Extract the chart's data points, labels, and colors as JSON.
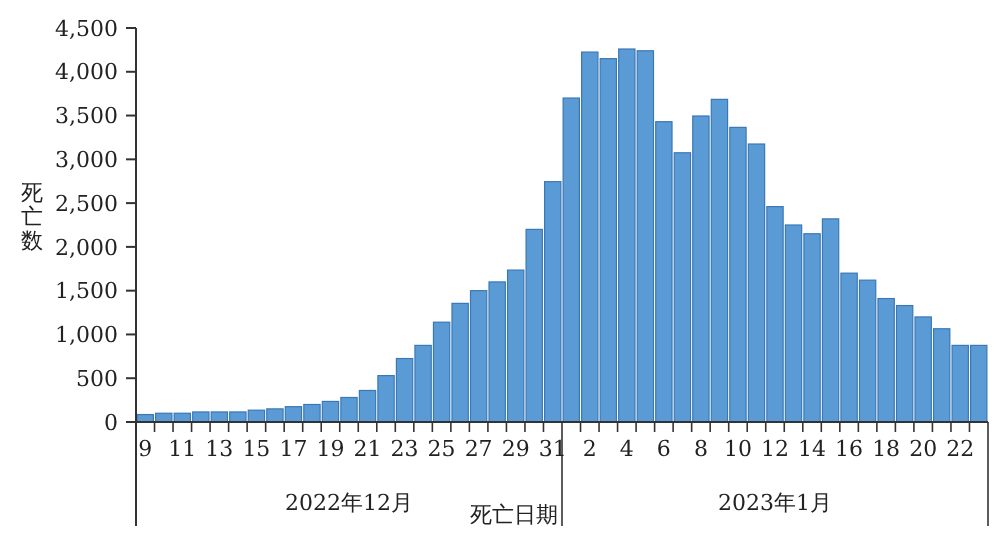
{
  "chart_data": {
    "type": "bar",
    "xlabel": "死亡日期",
    "ylabel": "死亡数",
    "categories": [
      "9",
      null,
      "11",
      null,
      "13",
      null,
      "15",
      null,
      "17",
      null,
      "19",
      null,
      "21",
      null,
      "23",
      null,
      "25",
      null,
      "27",
      null,
      "29",
      null,
      "31",
      null,
      "2",
      null,
      "4",
      null,
      "6",
      null,
      "8",
      null,
      "10",
      null,
      "12",
      null,
      "14",
      null,
      "16",
      null,
      "18",
      null,
      "20",
      null,
      "22",
      null
    ],
    "values": [
      85,
      100,
      100,
      115,
      115,
      115,
      135,
      150,
      175,
      200,
      235,
      280,
      360,
      530,
      725,
      875,
      1140,
      1355,
      1500,
      1600,
      1735,
      2200,
      2745,
      3700,
      4225,
      4150,
      4260,
      4240,
      3430,
      3075,
      3495,
      3685,
      3365,
      3175,
      2460,
      2250,
      2150,
      2320,
      1700,
      1620,
      1410,
      1330,
      1200,
      1065,
      875,
      875
    ],
    "color": "#5b9bd5",
    "ylim": [
      0,
      4500
    ],
    "yticks": [
      0,
      {
        "value": 500,
        "label": "500"
      },
      {
        "value": 1000,
        "label": "1,000"
      },
      {
        "value": 1500,
        "label": "1,500"
      },
      {
        "value": 2000,
        "label": "2,000"
      },
      {
        "value": 2500,
        "label": "2,500"
      },
      {
        "value": 3000,
        "label": "3,000"
      },
      {
        "value": 3500,
        "label": "3,500"
      },
      {
        "value": 4000,
        "label": "4,000"
      },
      {
        "value": 4500,
        "label": "4,500"
      }
    ],
    "annotations": [
      "2022年12月",
      "2023年1月"
    ]
  }
}
